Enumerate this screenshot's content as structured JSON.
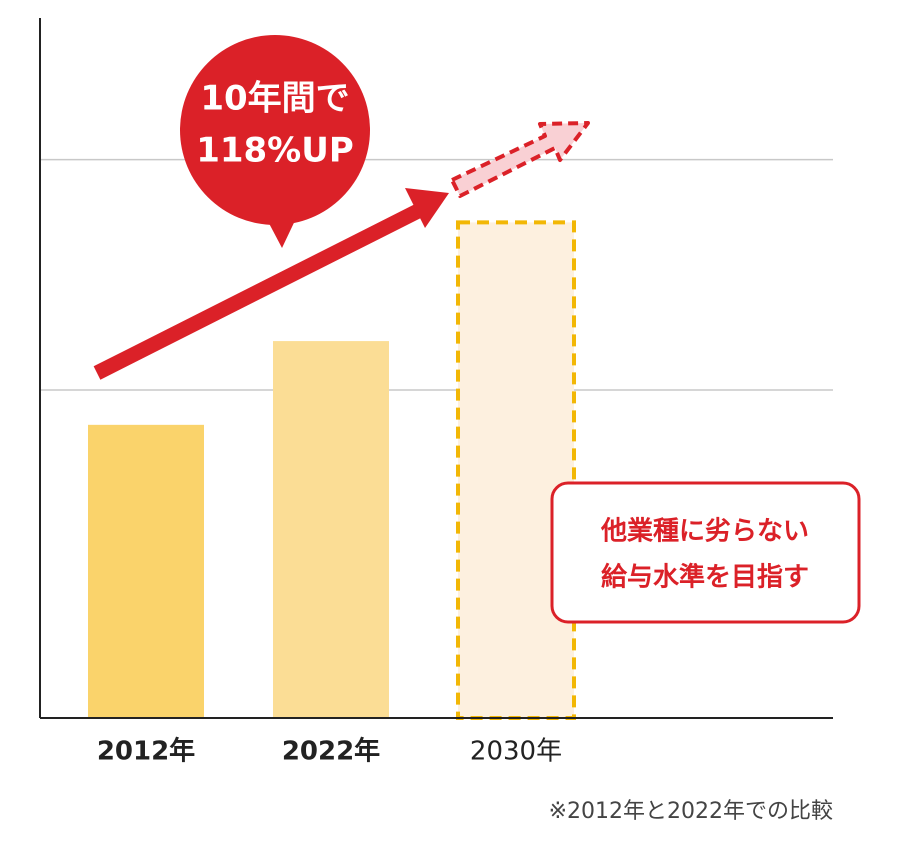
{
  "chart_data": {
    "type": "bar",
    "categories": [
      "2012年",
      "2022年",
      "2030年"
    ],
    "values": [
      42,
      54,
      71
    ],
    "colors": [
      "#fad36b",
      "#fbdd95",
      "#fdf0df"
    ],
    "styles": [
      "solid",
      "solid",
      "dashed"
    ],
    "dashed_stroke": "#f2b705",
    "ylim": [
      0,
      100
    ],
    "yticks": [
      47,
      80
    ],
    "grid": true,
    "bubble": [
      "10年間で",
      "118%UP"
    ],
    "callout": [
      "他業種に劣らない",
      "給与水準を目指す"
    ],
    "note": "※2012年と2022年での比較"
  }
}
